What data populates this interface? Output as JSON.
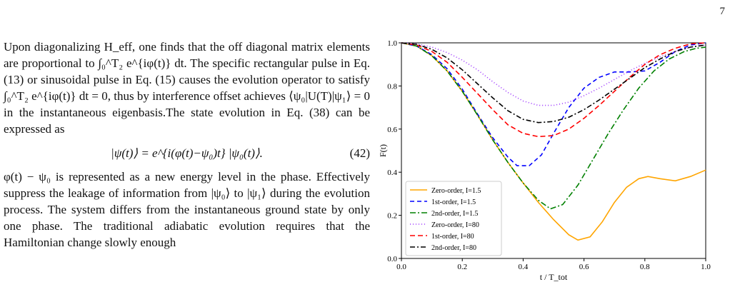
{
  "page": {
    "number": "7"
  },
  "text": {
    "para1": "Upon diagonalizing H_eff, one finds that the off diagonal matrix elements are proportional to ∫₀^T₂ e^{iφ(t)} dt. The specific rectangular pulse in Eq. (13) or sinusoidal pulse in Eq. (15) causes the evolution operator to satisfy ∫₀^T₂ e^{iφ(t)} dt = 0, thus by interference offset achieves ⟨ψ₀|U(T)|ψ₁⟩ = 0 in the instantaneous eigenbasis.The state evolution in Eq. (38) can be expressed as",
    "equation": "|ψ(t)⟩ = e^{i(φ(t)−ψ₀)t} |ψ₀(t)⟩.",
    "equation_number": "(42)",
    "para2": "φ(t) − ψ₀ is represented as a new energy level in the phase. Effectively suppress the leakage of information from |ψ₀⟩ to |ψ₁⟩ during the evolution process. The system differs from the instantaneous ground state by only one phase. The traditional adiabatic evolution requires that the Hamiltonian change slowly enough"
  },
  "chart_data": {
    "type": "line",
    "xlabel": "t / T_tot",
    "ylabel": "F(t)",
    "xlim": [
      0.0,
      1.0
    ],
    "ylim": [
      0.0,
      1.0
    ],
    "x_ticks": [
      "0.0",
      "0.2",
      "0.4",
      "0.6",
      "0.8",
      "1.0"
    ],
    "y_ticks": [
      "0.0",
      "0.2",
      "0.4",
      "0.6",
      "0.8",
      "1.0"
    ],
    "grid": false,
    "legend_position": "lower-left",
    "series": [
      {
        "name": "Zero-order, I=1.5",
        "color": "#ffa500",
        "dash": "solid",
        "x": [
          0,
          0.05,
          0.1,
          0.15,
          0.2,
          0.25,
          0.3,
          0.35,
          0.4,
          0.45,
          0.5,
          0.55,
          0.58,
          0.62,
          0.66,
          0.7,
          0.74,
          0.78,
          0.81,
          0.85,
          0.9,
          0.95,
          1.0
        ],
        "y": [
          1.0,
          0.985,
          0.94,
          0.87,
          0.775,
          0.665,
          0.55,
          0.445,
          0.35,
          0.26,
          0.18,
          0.11,
          0.085,
          0.1,
          0.17,
          0.26,
          0.33,
          0.37,
          0.38,
          0.37,
          0.36,
          0.38,
          0.41
        ]
      },
      {
        "name": "1st-order, I=1.5",
        "color": "#0000ff",
        "dash": "6,4",
        "x": [
          0,
          0.05,
          0.1,
          0.15,
          0.2,
          0.25,
          0.3,
          0.35,
          0.38,
          0.42,
          0.46,
          0.5,
          0.55,
          0.6,
          0.65,
          0.7,
          0.75,
          0.8,
          0.85,
          0.9,
          0.95,
          1.0
        ],
        "y": [
          1.0,
          0.985,
          0.945,
          0.88,
          0.785,
          0.67,
          0.56,
          0.47,
          0.43,
          0.43,
          0.48,
          0.58,
          0.7,
          0.79,
          0.84,
          0.865,
          0.865,
          0.87,
          0.91,
          0.96,
          0.99,
          1.0
        ]
      },
      {
        "name": "2nd-order, I=1.5",
        "color": "#008000",
        "dash": "8,3,2,3",
        "x": [
          0,
          0.05,
          0.1,
          0.15,
          0.2,
          0.25,
          0.3,
          0.35,
          0.4,
          0.45,
          0.49,
          0.53,
          0.58,
          0.63,
          0.68,
          0.73,
          0.78,
          0.83,
          0.88,
          0.93,
          0.97,
          1.0
        ],
        "y": [
          1.0,
          0.985,
          0.94,
          0.87,
          0.775,
          0.665,
          0.55,
          0.445,
          0.35,
          0.27,
          0.23,
          0.25,
          0.34,
          0.46,
          0.58,
          0.69,
          0.79,
          0.87,
          0.925,
          0.96,
          0.975,
          0.98
        ]
      },
      {
        "name": "Zero-order, I=80",
        "color": "#9b30ff",
        "dash": "1,3",
        "x": [
          0,
          0.05,
          0.1,
          0.15,
          0.2,
          0.25,
          0.3,
          0.35,
          0.4,
          0.45,
          0.5,
          0.55,
          0.6,
          0.65,
          0.7,
          0.75,
          0.8,
          0.85,
          0.9,
          0.95,
          1.0
        ],
        "y": [
          1.0,
          0.995,
          0.98,
          0.955,
          0.92,
          0.875,
          0.82,
          0.77,
          0.73,
          0.71,
          0.71,
          0.725,
          0.755,
          0.79,
          0.83,
          0.87,
          0.905,
          0.935,
          0.96,
          0.98,
          0.99
        ]
      },
      {
        "name": "1st-order, I=80",
        "color": "#ff0000",
        "dash": "7,4",
        "x": [
          0,
          0.05,
          0.1,
          0.15,
          0.2,
          0.25,
          0.3,
          0.35,
          0.4,
          0.45,
          0.5,
          0.55,
          0.6,
          0.65,
          0.7,
          0.75,
          0.8,
          0.85,
          0.9,
          0.95,
          1.0
        ],
        "y": [
          1.0,
          0.99,
          0.96,
          0.91,
          0.84,
          0.765,
          0.69,
          0.62,
          0.58,
          0.565,
          0.57,
          0.6,
          0.65,
          0.71,
          0.775,
          0.84,
          0.9,
          0.945,
          0.975,
          0.995,
          1.0
        ]
      },
      {
        "name": "2nd-order, I=80",
        "color": "#000000",
        "dash": "7,3,2,3",
        "x": [
          0,
          0.05,
          0.1,
          0.15,
          0.2,
          0.25,
          0.3,
          0.35,
          0.4,
          0.45,
          0.5,
          0.55,
          0.6,
          0.65,
          0.7,
          0.75,
          0.8,
          0.85,
          0.9,
          0.95,
          1.0
        ],
        "y": [
          1.0,
          0.993,
          0.97,
          0.93,
          0.875,
          0.81,
          0.745,
          0.685,
          0.645,
          0.63,
          0.635,
          0.655,
          0.69,
          0.735,
          0.785,
          0.835,
          0.885,
          0.925,
          0.96,
          0.98,
          0.99
        ]
      }
    ]
  }
}
